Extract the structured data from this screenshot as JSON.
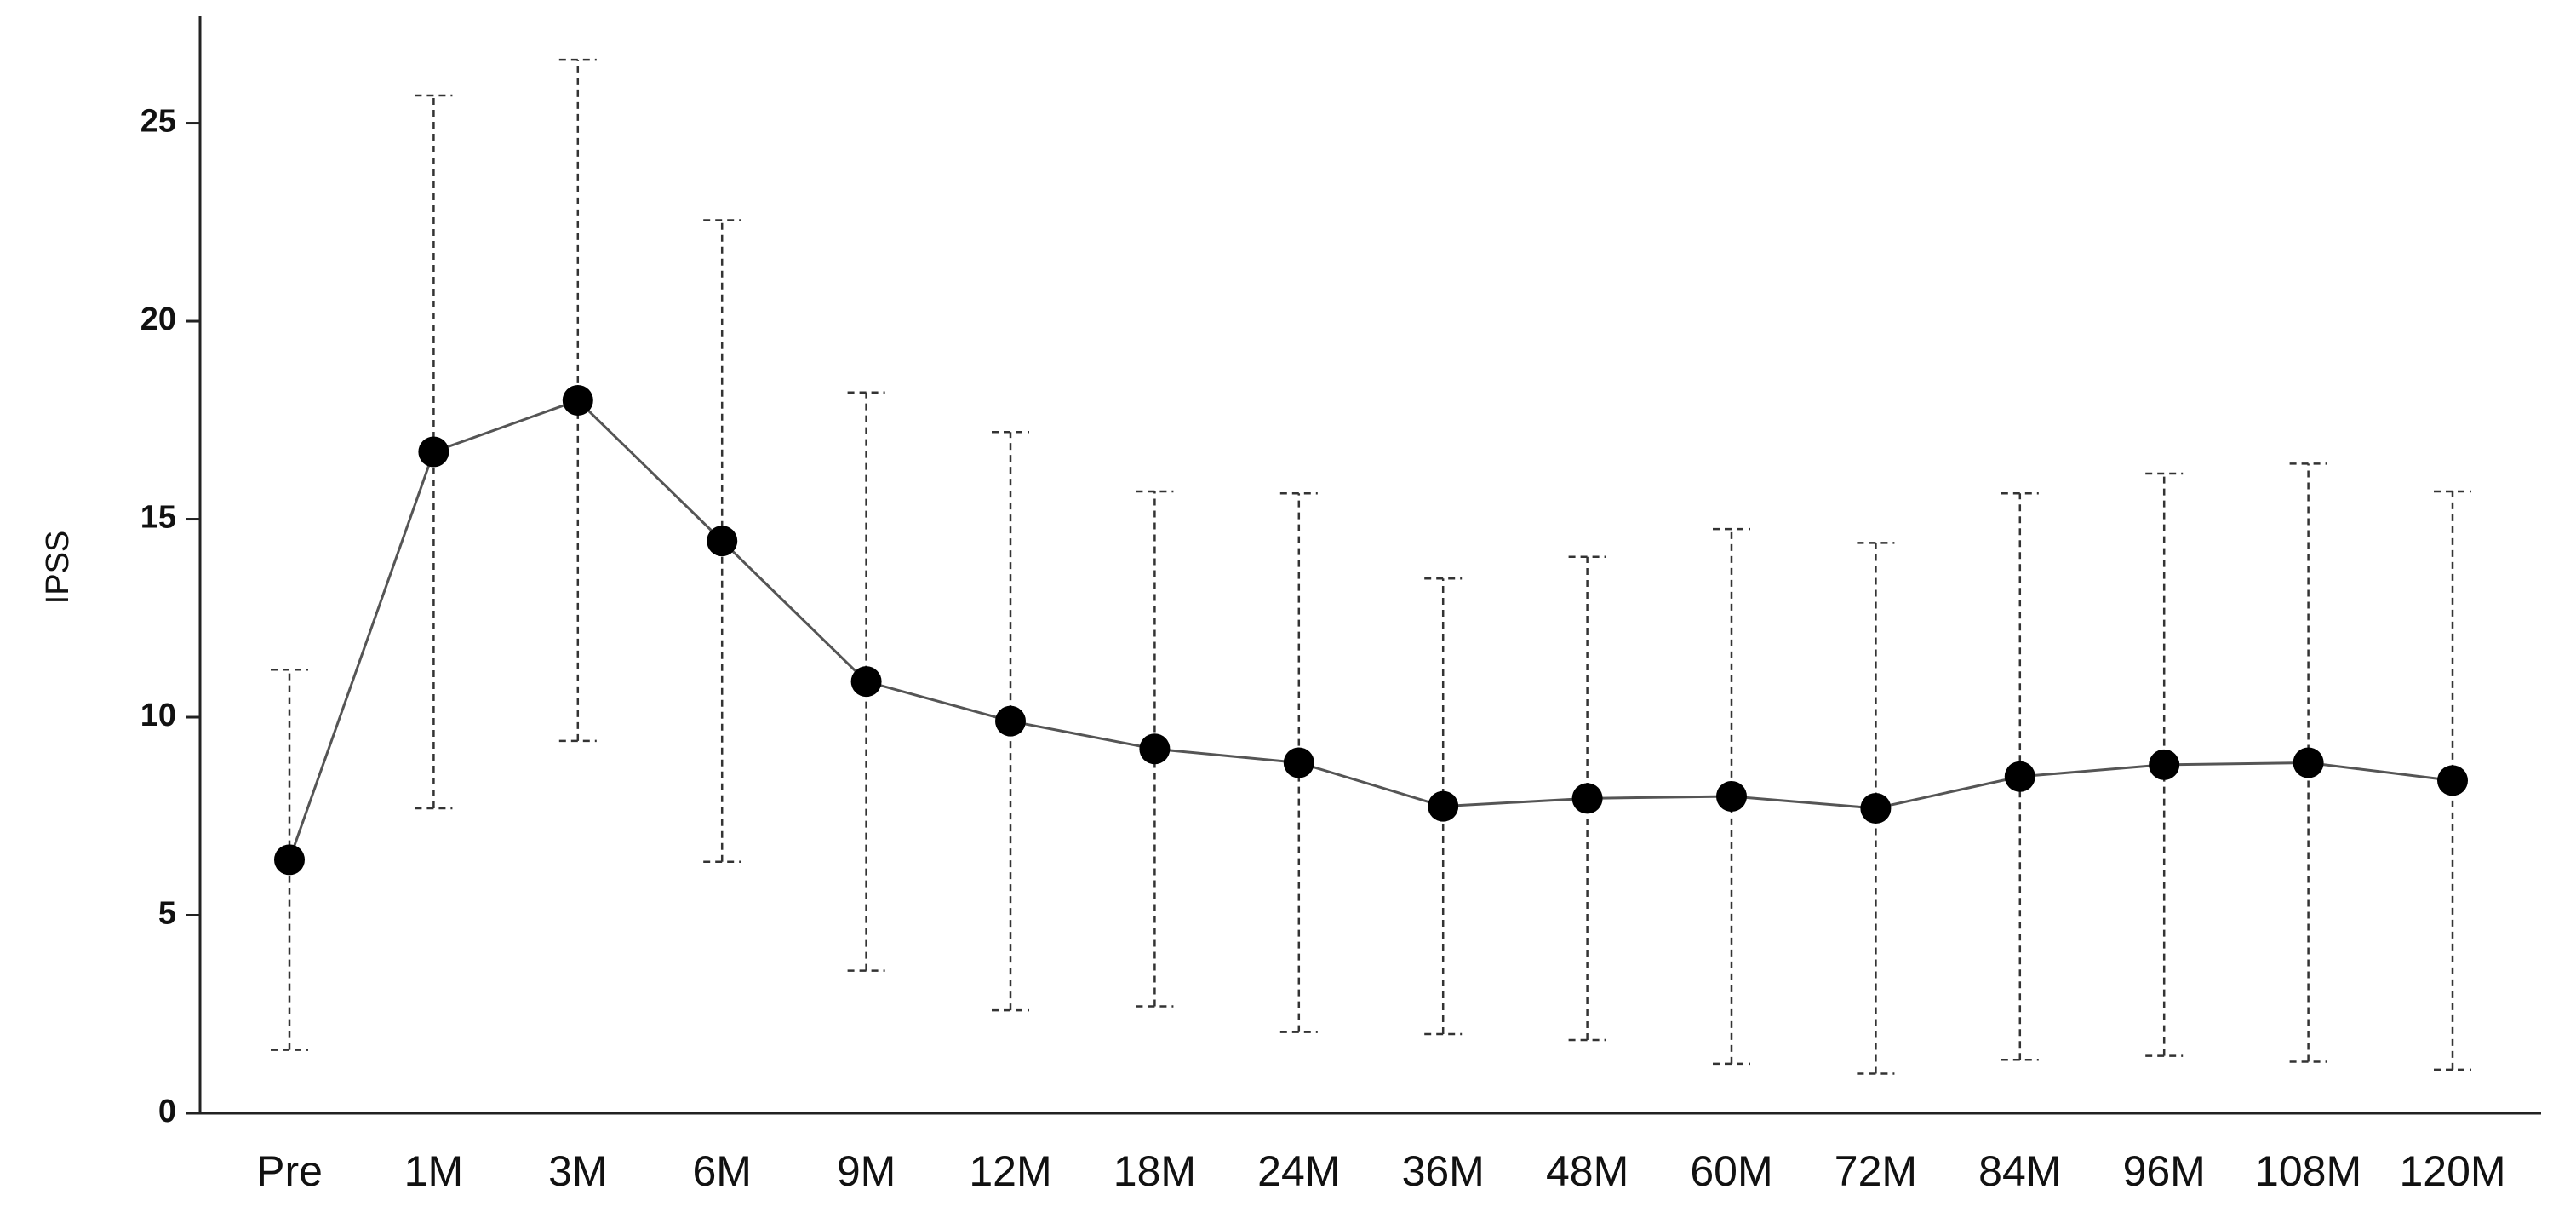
{
  "chart_data": {
    "type": "line",
    "y_label": "IPSS",
    "categories": [
      "Pre",
      "1M",
      "3M",
      "6M",
      "9M",
      "12M",
      "18M",
      "24M",
      "36M",
      "48M",
      "60M",
      "72M",
      "84M",
      "96M",
      "108M",
      "120M"
    ],
    "series": [
      {
        "color": "#000000",
        "values": [
          6.4,
          16.7,
          18.0,
          14.45,
          10.9,
          9.9,
          9.2,
          8.85,
          7.75,
          7.95,
          8.0,
          7.7,
          8.5,
          8.8,
          8.85,
          8.4
        ],
        "errors": [
          4.8,
          9.0,
          8.6,
          8.1,
          7.3,
          7.3,
          6.5,
          6.8,
          5.75,
          6.1,
          6.75,
          6.7,
          7.15,
          7.35,
          7.55,
          7.3
        ]
      }
    ],
    "ylim": [
      0,
      27.7
    ],
    "yticks": [
      0,
      5,
      10,
      15,
      20,
      25
    ]
  }
}
